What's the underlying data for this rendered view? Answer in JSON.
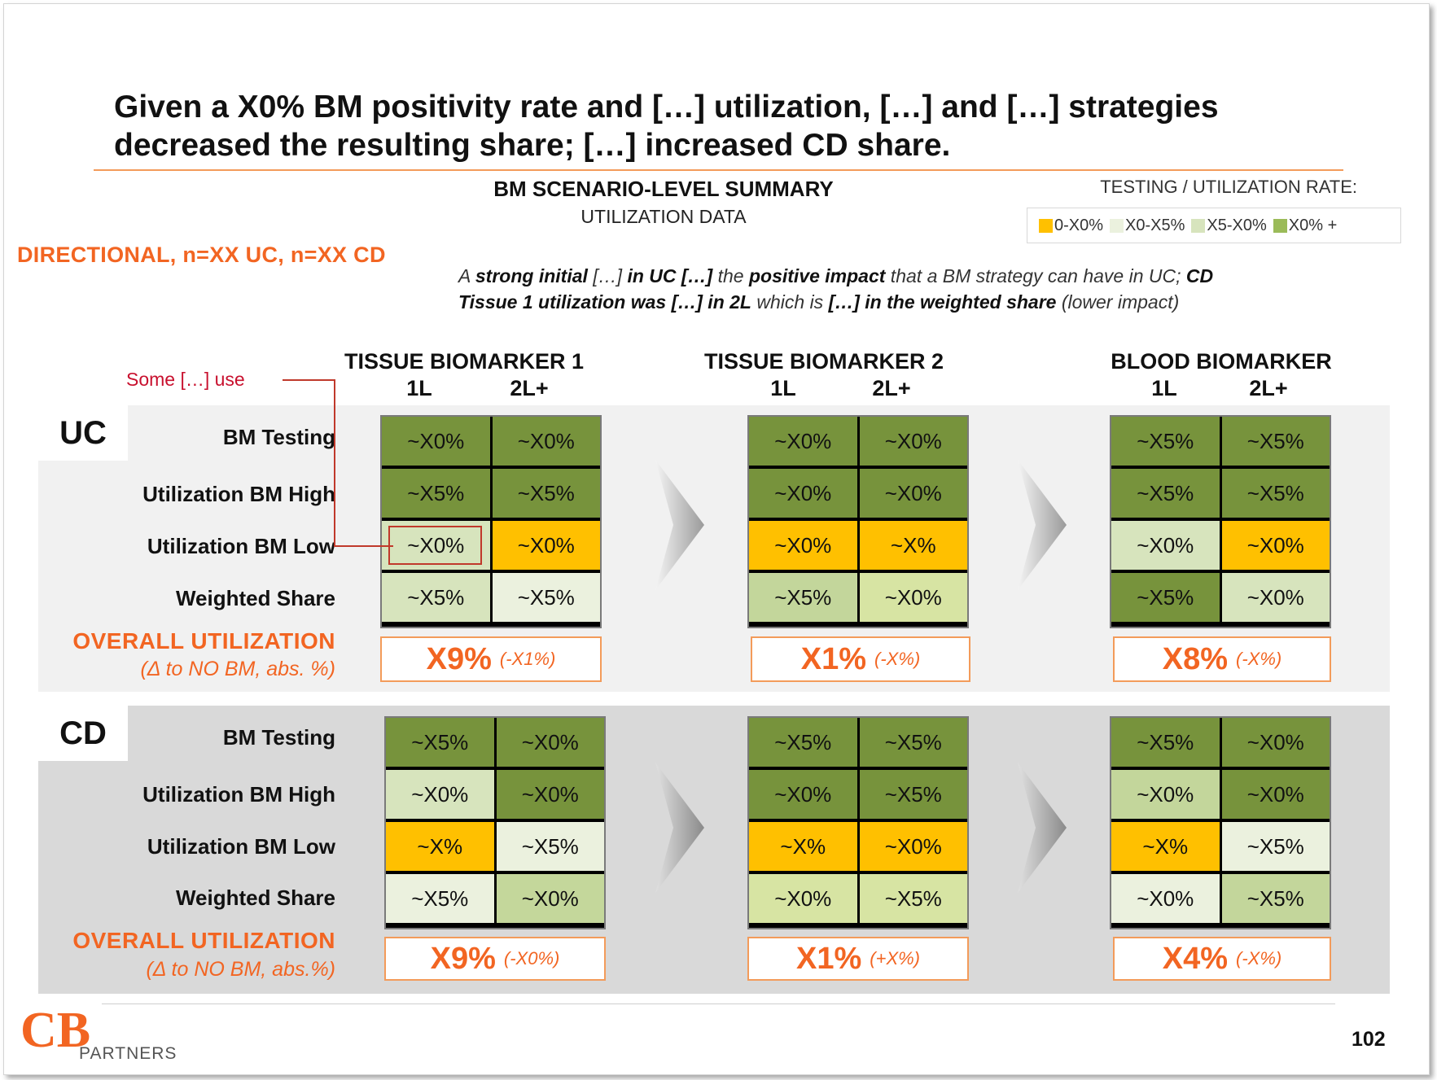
{
  "title_line1": "Given a X0% BM positivity rate and […] utilization, […] and […] strategies",
  "title_line2": "decreased the resulting share; […] increased CD share.",
  "summary_title": "BM SCENARIO-LEVEL  SUMMARY",
  "summary_subtitle": "UTILIZATION DATA",
  "legend": {
    "title": "TESTING  / UTILIZATION  RATE:",
    "items": [
      {
        "label": "0-X0%",
        "color": "#ffc000"
      },
      {
        "label": "X0-X5%",
        "color": "#ebf1de"
      },
      {
        "label": "X5-X0%",
        "color": "#d7e4bd"
      },
      {
        "label": "X0% +",
        "color": "#9bbb59"
      }
    ]
  },
  "directional": "DIRECTIONAL,  n=XX UC, n=XX CD",
  "note": {
    "l1a": "A ",
    "l1b": "strong initial",
    "l1c": " […] ",
    "l1d": "in UC […]",
    "l1e": " the ",
    "l1f": "positive impact",
    "l1g": " that a BM strategy can have in UC; ",
    "l1h": "CD",
    "l2a": "Tissue 1 utilization was […] in 2L",
    "l2b": " which is ",
    "l2c": "[…] in the weighted share",
    "l2d": " (lower impact)"
  },
  "callout": "Some […] use",
  "column_groups": [
    {
      "name": "TISSUE BIOMARKER  1",
      "sub1": "1L",
      "sub2": "2L+"
    },
    {
      "name": "TISSUE BIOMARKER  2",
      "sub1": "1L",
      "sub2": "2L+"
    },
    {
      "name": "BLOOD BIOMARKER",
      "sub1": "1L",
      "sub2": "2L+"
    }
  ],
  "row_labels": [
    "BM Testing",
    "Utilization  BM High",
    "Utilization  BM Low",
    "Weighted Share"
  ],
  "overall_label": "OVERALL  UTILIZATION",
  "uc": {
    "tag": "UC",
    "delta_label": "(Δ to NO BM, abs. %)",
    "groups": [
      {
        "cells": [
          [
            "~X0%",
            "~X0%"
          ],
          [
            "~X5%",
            "~X5%"
          ],
          [
            "~X0%",
            "~X0%"
          ],
          [
            "~X5%",
            "~X5%"
          ]
        ],
        "colors": [
          [
            "#77933c",
            "#77933c"
          ],
          [
            "#77933c",
            "#77933c"
          ],
          [
            "#d7e4bd",
            "#ffc000"
          ],
          [
            "#d7e4bd",
            "#ebf1de"
          ]
        ],
        "overall": "X9%",
        "delta": "(-X1%)"
      },
      {
        "cells": [
          [
            "~X0%",
            "~X0%"
          ],
          [
            "~X0%",
            "~X0%"
          ],
          [
            "~X0%",
            "~X%"
          ],
          [
            "~X5%",
            "~X0%"
          ]
        ],
        "colors": [
          [
            "#77933c",
            "#77933c"
          ],
          [
            "#77933c",
            "#77933c"
          ],
          [
            "#ffc000",
            "#ffc000"
          ],
          [
            "#c3d69b",
            "#d7e4a3"
          ]
        ],
        "overall": "X1%",
        "delta": "(-X%)"
      },
      {
        "cells": [
          [
            "~X5%",
            "~X5%"
          ],
          [
            "~X5%",
            "~X5%"
          ],
          [
            "~X0%",
            "~X0%"
          ],
          [
            "~X5%",
            "~X0%"
          ]
        ],
        "colors": [
          [
            "#77933c",
            "#77933c"
          ],
          [
            "#77933c",
            "#77933c"
          ],
          [
            "#d7e4bd",
            "#ffc000"
          ],
          [
            "#77933c",
            "#d7e4bd"
          ]
        ],
        "overall": "X8%",
        "delta": "(-X%)"
      }
    ]
  },
  "cd": {
    "tag": "CD",
    "delta_label": "(Δ to NO BM, abs.%)",
    "groups": [
      {
        "cells": [
          [
            "~X5%",
            "~X0%"
          ],
          [
            "~X0%",
            "~X0%"
          ],
          [
            "~X%",
            "~X5%"
          ],
          [
            "~X5%",
            "~X0%"
          ]
        ],
        "colors": [
          [
            "#77933c",
            "#77933c"
          ],
          [
            "#d7e4bd",
            "#77933c"
          ],
          [
            "#ffc000",
            "#ebf1de"
          ],
          [
            "#ebf1de",
            "#c4d79b"
          ]
        ],
        "overall": "X9%",
        "delta": "(-X0%)"
      },
      {
        "cells": [
          [
            "~X5%",
            "~X5%"
          ],
          [
            "~X0%",
            "~X5%"
          ],
          [
            "~X%",
            "~X0%"
          ],
          [
            "~X0%",
            "~X5%"
          ]
        ],
        "colors": [
          [
            "#77933c",
            "#77933c"
          ],
          [
            "#77933c",
            "#77933c"
          ],
          [
            "#ffc000",
            "#ffc000"
          ],
          [
            "#d7e4a3",
            "#d7e4a3"
          ]
        ],
        "overall": "X1%",
        "delta": "(+X%)"
      },
      {
        "cells": [
          [
            "~X5%",
            "~X0%"
          ],
          [
            "~X0%",
            "~X0%"
          ],
          [
            "~X%",
            "~X5%"
          ],
          [
            "~X0%",
            "~X5%"
          ]
        ],
        "colors": [
          [
            "#77933c",
            "#77933c"
          ],
          [
            "#c3d69b",
            "#77933c"
          ],
          [
            "#ffc000",
            "#ebf1de"
          ],
          [
            "#ebf1de",
            "#c3d69b"
          ]
        ],
        "overall": "X4%",
        "delta": "(-X%)"
      }
    ]
  },
  "logo": {
    "letters": "CB",
    "word": "PARTNERS",
    "color": "#f26522"
  },
  "page_number": "102"
}
